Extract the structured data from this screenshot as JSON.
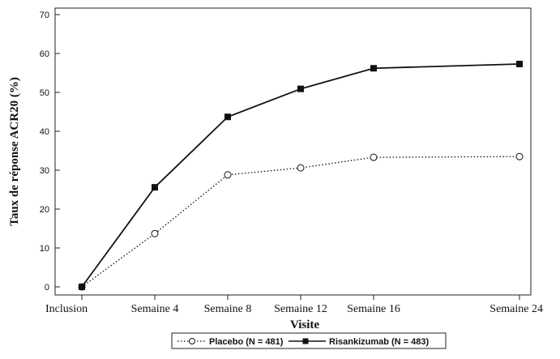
{
  "chart_data": {
    "type": "line",
    "title": "",
    "xlabel": "Visite",
    "ylabel": "Taux de réponse ACR20 (%)",
    "categories": [
      "Inclusion",
      "Semaine 4",
      "Semaine 8",
      "Semaine 12",
      "Semaine 16",
      "Semaine 24"
    ],
    "x": [
      0,
      4,
      8,
      12,
      16,
      24
    ],
    "ylim": [
      0,
      70
    ],
    "yticks": [
      "0",
      "10",
      "20",
      "30",
      "40",
      "50",
      "60",
      "70"
    ],
    "grid": false,
    "legend_position": "bottom",
    "series": [
      {
        "name": "Placebo (N = 481)",
        "values": [
          0,
          13.7,
          28.8,
          30.6,
          33.3,
          33.5
        ],
        "line_style": "dotted",
        "marker": "open-circle",
        "color": "#111111"
      },
      {
        "name": "Risankizumab (N = 483)",
        "values": [
          0,
          25.6,
          43.7,
          50.9,
          56.2,
          57.3
        ],
        "line_style": "solid",
        "marker": "filled-square",
        "color": "#111111"
      }
    ]
  }
}
